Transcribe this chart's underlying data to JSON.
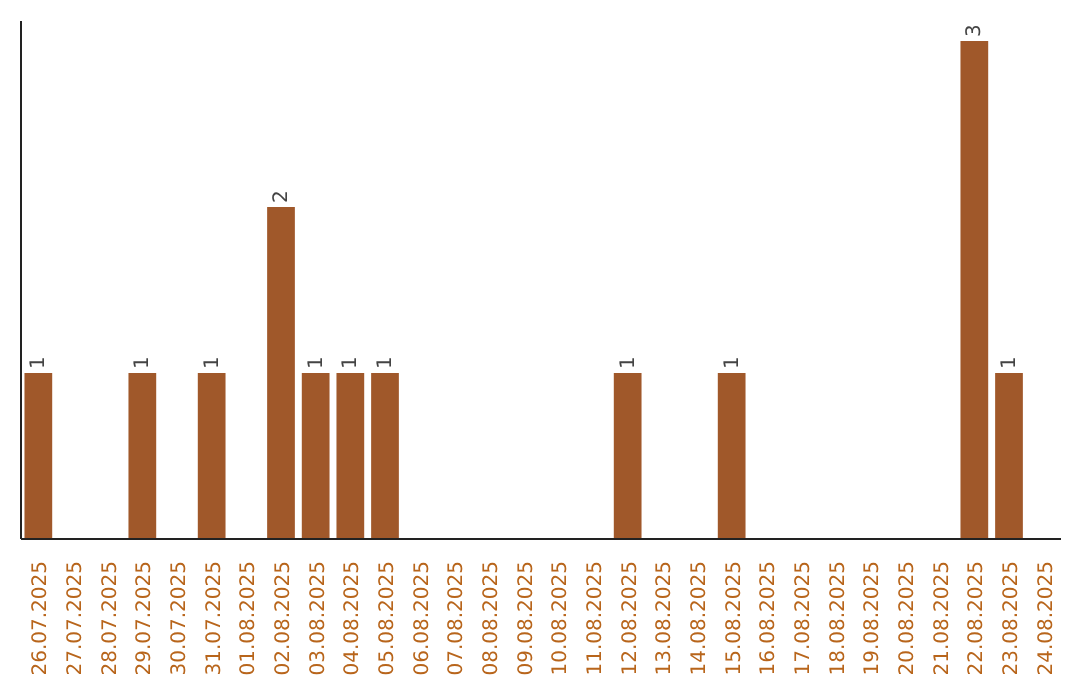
{
  "chart_data": {
    "type": "bar",
    "categories": [
      "26.07.2025",
      "27.07.2025",
      "28.07.2025",
      "29.07.2025",
      "30.07.2025",
      "31.07.2025",
      "01.08.2025",
      "02.08.2025",
      "03.08.2025",
      "04.08.2025",
      "05.08.2025",
      "06.08.2025",
      "07.08.2025",
      "08.08.2025",
      "09.08.2025",
      "10.08.2025",
      "11.08.2025",
      "12.08.2025",
      "13.08.2025",
      "14.08.2025",
      "15.08.2025",
      "16.08.2025",
      "17.08.2025",
      "18.08.2025",
      "19.08.2025",
      "20.08.2025",
      "21.08.2025",
      "22.08.2025",
      "23.08.2025",
      "24.08.2025"
    ],
    "values": [
      1,
      0,
      0,
      1,
      0,
      1,
      0,
      2,
      1,
      1,
      1,
      0,
      0,
      0,
      0,
      0,
      0,
      1,
      0,
      0,
      1,
      0,
      0,
      0,
      0,
      0,
      0,
      3,
      1,
      0
    ],
    "value_labels": [
      "1",
      null,
      null,
      "1",
      null,
      "1",
      null,
      "2",
      "1",
      "1",
      "1",
      null,
      null,
      null,
      null,
      null,
      null,
      "1",
      null,
      null,
      "1",
      null,
      null,
      null,
      null,
      null,
      null,
      "3",
      "1",
      null
    ],
    "color": "#a0582a",
    "grid": false
  }
}
